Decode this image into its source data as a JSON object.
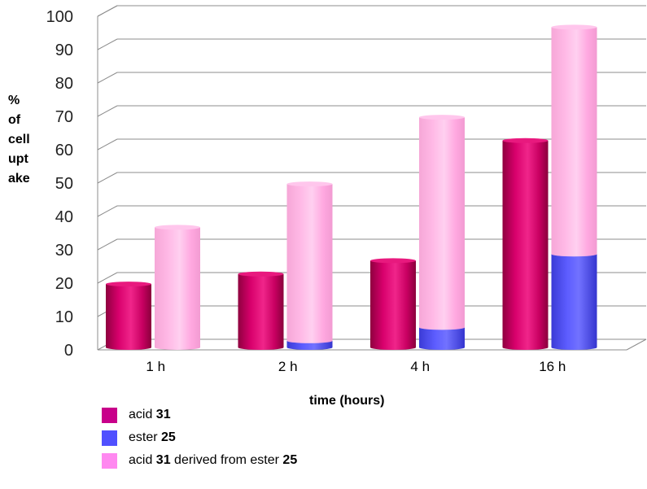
{
  "chart_data": {
    "type": "bar",
    "style": "3d-cylinder-stacked",
    "categories": [
      "1 h",
      "2 h",
      "4 h",
      "16 h"
    ],
    "ylim": [
      0,
      100
    ],
    "yticks": [
      0,
      10,
      20,
      30,
      40,
      50,
      60,
      70,
      80,
      90,
      100
    ],
    "xlabel": "time (hours)",
    "ylabel_lines": [
      "%",
      "of",
      "cell",
      "upt",
      "ake"
    ],
    "grid": true,
    "series": [
      {
        "name": "acid 31",
        "stack": "acid",
        "color": "#d1006e",
        "values": [
          19,
          22,
          26,
          62
        ]
      },
      {
        "name": "ester 25",
        "stack": "ester",
        "color": "#5b5bff",
        "values": [
          0,
          2,
          6,
          28
        ]
      },
      {
        "name": "acid 31 derived from ester 25",
        "stack": "ester",
        "color": "#ff9ee0",
        "values": [
          36,
          47,
          63,
          68
        ]
      }
    ],
    "legend": {
      "placement": "bottom-left",
      "items": [
        {
          "text": "acid ",
          "bold": "31",
          "tail": "",
          "bold2": "",
          "color": "#c8008a"
        },
        {
          "text": "ester ",
          "bold": "25",
          "tail": "",
          "bold2": "",
          "color": "#5050ff"
        },
        {
          "text": "acid ",
          "bold": "31",
          "tail": " derived from ester ",
          "bold2": "25",
          "color": "#ff88f0"
        }
      ]
    }
  }
}
